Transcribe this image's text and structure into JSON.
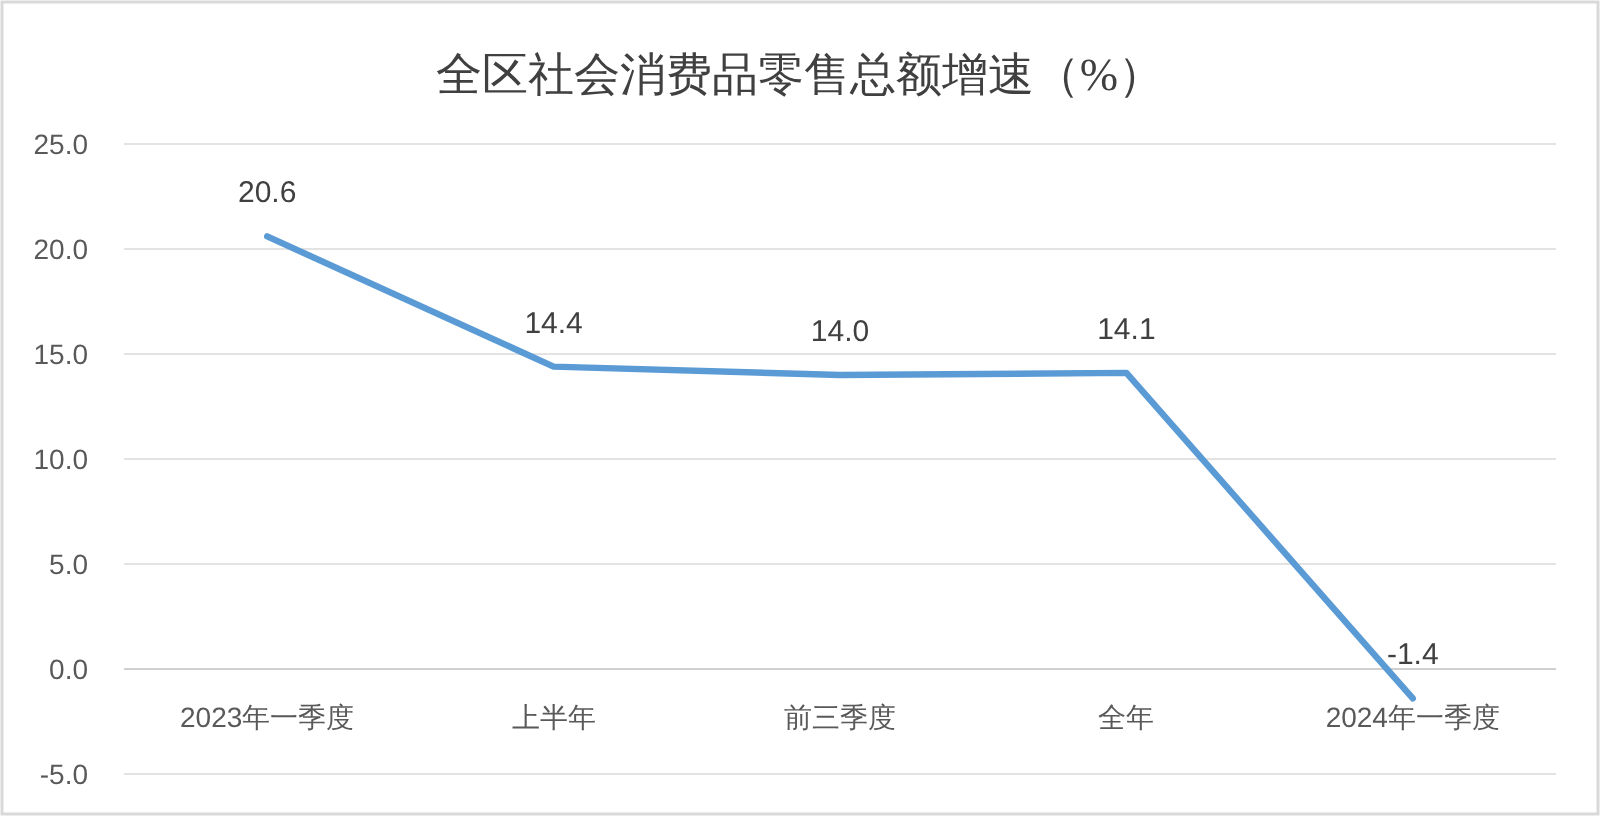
{
  "chart_data": {
    "type": "line",
    "title": "全区社会消费品零售总额增速（%）",
    "categories": [
      "2023年一季度",
      "上半年",
      "前三季度",
      "全年",
      "2024年一季度"
    ],
    "series": [
      {
        "color": "#5b9bd5",
        "values": [
          20.6,
          14.4,
          14.0,
          14.1,
          -1.4
        ],
        "value_labels": [
          "20.6",
          "14.4",
          "14.0",
          "14.1",
          "-1.4"
        ]
      }
    ],
    "ylim": [
      -5,
      25
    ],
    "yticks": [
      {
        "value": -5,
        "label": "-5.0"
      },
      {
        "value": 0,
        "label": "0.0"
      },
      {
        "value": 5,
        "label": "5.0"
      },
      {
        "value": 10,
        "label": "10.0"
      },
      {
        "value": 15,
        "label": "15.0"
      },
      {
        "value": 20,
        "label": "20.0"
      },
      {
        "value": 25,
        "label": "25.0"
      }
    ],
    "grid": "y",
    "line_style": "solid"
  }
}
